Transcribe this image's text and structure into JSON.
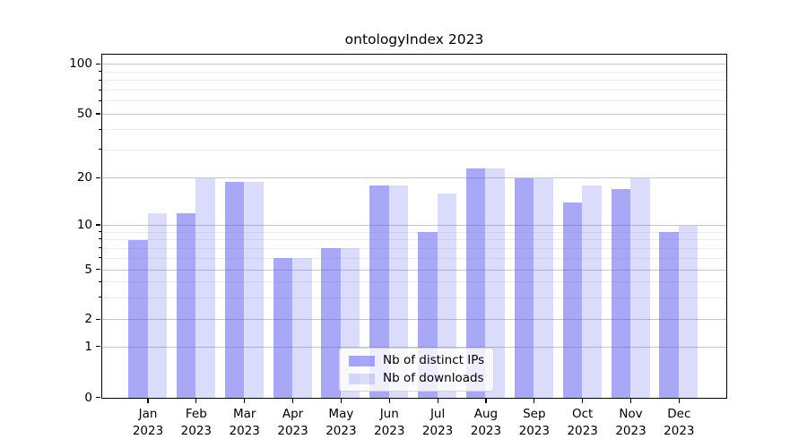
{
  "chart_data": {
    "type": "bar",
    "title": "ontologyIndex 2023",
    "x_month_labels": [
      "Jan",
      "Feb",
      "Mar",
      "Apr",
      "May",
      "Jun",
      "Jul",
      "Aug",
      "Sep",
      "Oct",
      "Nov",
      "Dec"
    ],
    "x_year_label": "2023",
    "categories": [
      "Jan 2023",
      "Feb 2023",
      "Mar 2023",
      "Apr 2023",
      "May 2023",
      "Jun 2023",
      "Jul 2023",
      "Aug 2023",
      "Sep 2023",
      "Oct 2023",
      "Nov 2023",
      "Dec 2023"
    ],
    "series": [
      {
        "name": "Nb of distinct IPs",
        "base_color_hex": "#5555f0",
        "alpha": 0.51,
        "rendered_color_hex": "#a8a8f7",
        "values": [
          8,
          12,
          19,
          6,
          7,
          18,
          9,
          23,
          20,
          14,
          17,
          9
        ]
      },
      {
        "name": "Nb of downloads",
        "base_color_hex": "#5555f0",
        "alpha": 0.21,
        "rendered_color_hex": "#dbdbfa",
        "values": [
          12,
          20,
          19,
          6,
          7,
          18,
          16,
          23,
          20,
          18,
          20,
          10
        ]
      }
    ],
    "yscale": "symlog",
    "ylim": [
      0,
      110
    ],
    "major_yticks": [
      0,
      1,
      2,
      5,
      10,
      20,
      50,
      100
    ],
    "minor_yticks": [
      3,
      4,
      6,
      7,
      8,
      9,
      30,
      40,
      60,
      70,
      80,
      90
    ],
    "grid": true,
    "xlabel": "",
    "ylabel": "",
    "legend_position": "lower center"
  },
  "colors": {
    "background": "#ffffff",
    "grid_major": "#c6c6c6",
    "grid_minor": "#ececec",
    "axis": "#000000",
    "legend_border": "#d4d4d4"
  }
}
